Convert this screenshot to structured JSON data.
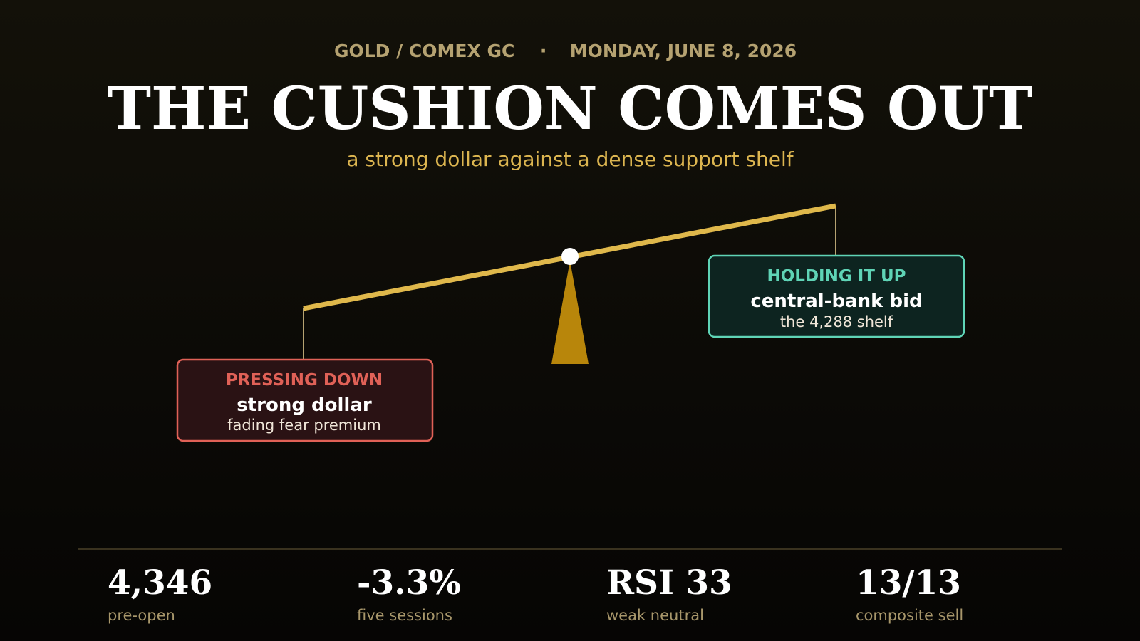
{
  "header": {
    "market": "GOLD / COMEX GC",
    "separator": "·",
    "date": "MONDAY, JUNE 8, 2026",
    "title": "THE CUSHION COMES OUT",
    "subtitle": "a strong dollar against a dense support shelf"
  },
  "scale": {
    "left": {
      "label": "PRESSING DOWN",
      "main": "strong dollar",
      "sub": "fading fear premium"
    },
    "right": {
      "label": "HOLDING IT UP",
      "main": "central-bank bid",
      "sub": "the 4,288 shelf"
    }
  },
  "stats": [
    {
      "value": "4,346",
      "label": "pre-open"
    },
    {
      "value": "-3.3%",
      "label": "five sessions"
    },
    {
      "value": "RSI 33",
      "label": "weak neutral"
    },
    {
      "value": "13/13",
      "label": "composite sell"
    }
  ]
}
